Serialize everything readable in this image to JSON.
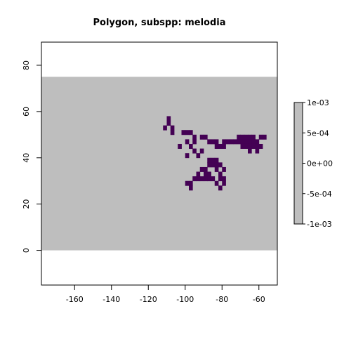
{
  "chart_data": {
    "type": "heatmap",
    "title": "Polygon, subspp: melodia",
    "xlabel": "",
    "ylabel": "",
    "xlim": [
      -178,
      -50
    ],
    "ylim": [
      -15,
      90
    ],
    "x_ticks": [
      -160,
      -140,
      -120,
      -100,
      -80,
      -60
    ],
    "x_tick_labels": [
      "-160",
      "-140",
      "-120",
      "-100",
      "-80",
      "-60"
    ],
    "y_ticks": [
      0,
      20,
      40,
      60,
      80
    ],
    "y_tick_labels": [
      "0",
      "20",
      "40",
      "60",
      "80"
    ],
    "background_extent": {
      "x": [
        -178,
        -50
      ],
      "y": [
        0,
        75
      ]
    },
    "cell_size": 2,
    "presence_cells": [
      [
        -110,
        56
      ],
      [
        -110,
        54
      ],
      [
        -112,
        52
      ],
      [
        -108,
        52
      ],
      [
        -108,
        50
      ],
      [
        -102,
        50
      ],
      [
        -100,
        50
      ],
      [
        -98,
        50
      ],
      [
        -96,
        48
      ],
      [
        -92,
        48
      ],
      [
        -90,
        48
      ],
      [
        -100,
        46
      ],
      [
        -96,
        46
      ],
      [
        -88,
        46
      ],
      [
        -86,
        46
      ],
      [
        -84,
        46
      ],
      [
        -104,
        44
      ],
      [
        -98,
        44
      ],
      [
        -84,
        44
      ],
      [
        -82,
        44
      ],
      [
        -96,
        42
      ],
      [
        -92,
        42
      ],
      [
        -100,
        40
      ],
      [
        -94,
        40
      ],
      [
        -80,
        46
      ],
      [
        -78,
        46
      ],
      [
        -76,
        46
      ],
      [
        -74,
        46
      ],
      [
        -72,
        46
      ],
      [
        -70,
        46
      ],
      [
        -68,
        46
      ],
      [
        -66,
        46
      ],
      [
        -64,
        46
      ],
      [
        -62,
        46
      ],
      [
        -72,
        48
      ],
      [
        -70,
        48
      ],
      [
        -68,
        48
      ],
      [
        -66,
        48
      ],
      [
        -64,
        48
      ],
      [
        -60,
        48
      ],
      [
        -58,
        48
      ],
      [
        -80,
        44
      ],
      [
        -70,
        44
      ],
      [
        -68,
        44
      ],
      [
        -66,
        44
      ],
      [
        -64,
        44
      ],
      [
        -62,
        44
      ],
      [
        -60,
        44
      ],
      [
        -66,
        42
      ],
      [
        -62,
        42
      ],
      [
        -88,
        38
      ],
      [
        -86,
        38
      ],
      [
        -84,
        38
      ],
      [
        -88,
        36
      ],
      [
        -86,
        36
      ],
      [
        -84,
        36
      ],
      [
        -82,
        36
      ],
      [
        -92,
        34
      ],
      [
        -90,
        34
      ],
      [
        -84,
        34
      ],
      [
        -80,
        34
      ],
      [
        -94,
        32
      ],
      [
        -90,
        32
      ],
      [
        -88,
        32
      ],
      [
        -82,
        32
      ],
      [
        -96,
        30
      ],
      [
        -94,
        30
      ],
      [
        -92,
        30
      ],
      [
        -90,
        30
      ],
      [
        -88,
        30
      ],
      [
        -86,
        30
      ],
      [
        -82,
        30
      ],
      [
        -80,
        30
      ],
      [
        -100,
        28
      ],
      [
        -98,
        28
      ],
      [
        -84,
        28
      ],
      [
        -80,
        28
      ],
      [
        -98,
        26
      ],
      [
        -82,
        26
      ]
    ],
    "colors": {
      "background": "#bebebe",
      "presence": "#440154"
    },
    "legend": {
      "placement": "right",
      "tick_labels": [
        "1e-03",
        "5e-04",
        "0e+00",
        "-5e-04",
        "-1e-03"
      ],
      "fill": "#bebebe"
    },
    "grid": false
  }
}
